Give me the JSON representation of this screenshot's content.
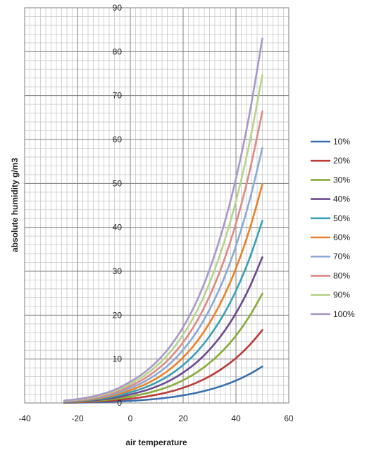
{
  "chart_data": {
    "type": "line",
    "title": "",
    "xlabel": "air temperature",
    "ylabel": "absolute humidity g/m3",
    "xlim": [
      -40,
      60
    ],
    "ylim": [
      0,
      90
    ],
    "x_ticks": [
      -40,
      -20,
      0,
      20,
      40,
      60
    ],
    "y_ticks": [
      0,
      10,
      20,
      30,
      40,
      50,
      60,
      70,
      80,
      90
    ],
    "grid": true,
    "legend_position": "right",
    "x": [
      -25,
      -20,
      -15,
      -10,
      -5,
      0,
      5,
      10,
      15,
      20,
      25,
      30,
      35,
      40,
      45,
      50
    ],
    "saturation_values": [
      0.55,
      0.88,
      1.39,
      2.14,
      3.24,
      4.85,
      6.8,
      9.4,
      12.8,
      17.3,
      23.0,
      30.4,
      39.6,
      51.1,
      65.4,
      83.0
    ],
    "series": [
      {
        "name": "10%",
        "fraction": 0.1,
        "color": "#3b6fb0"
      },
      {
        "name": "20%",
        "fraction": 0.2,
        "color": "#b83c3a"
      },
      {
        "name": "30%",
        "fraction": 0.3,
        "color": "#8aaa3b"
      },
      {
        "name": "40%",
        "fraction": 0.4,
        "color": "#6b4a8e"
      },
      {
        "name": "50%",
        "fraction": 0.5,
        "color": "#3aa0b5"
      },
      {
        "name": "60%",
        "fraction": 0.6,
        "color": "#e8822a"
      },
      {
        "name": "70%",
        "fraction": 0.7,
        "color": "#8aaad4"
      },
      {
        "name": "80%",
        "fraction": 0.8,
        "color": "#dc8a88"
      },
      {
        "name": "90%",
        "fraction": 0.9,
        "color": "#b8d48a"
      },
      {
        "name": "100%",
        "fraction": 1.0,
        "color": "#a898c8"
      }
    ]
  }
}
